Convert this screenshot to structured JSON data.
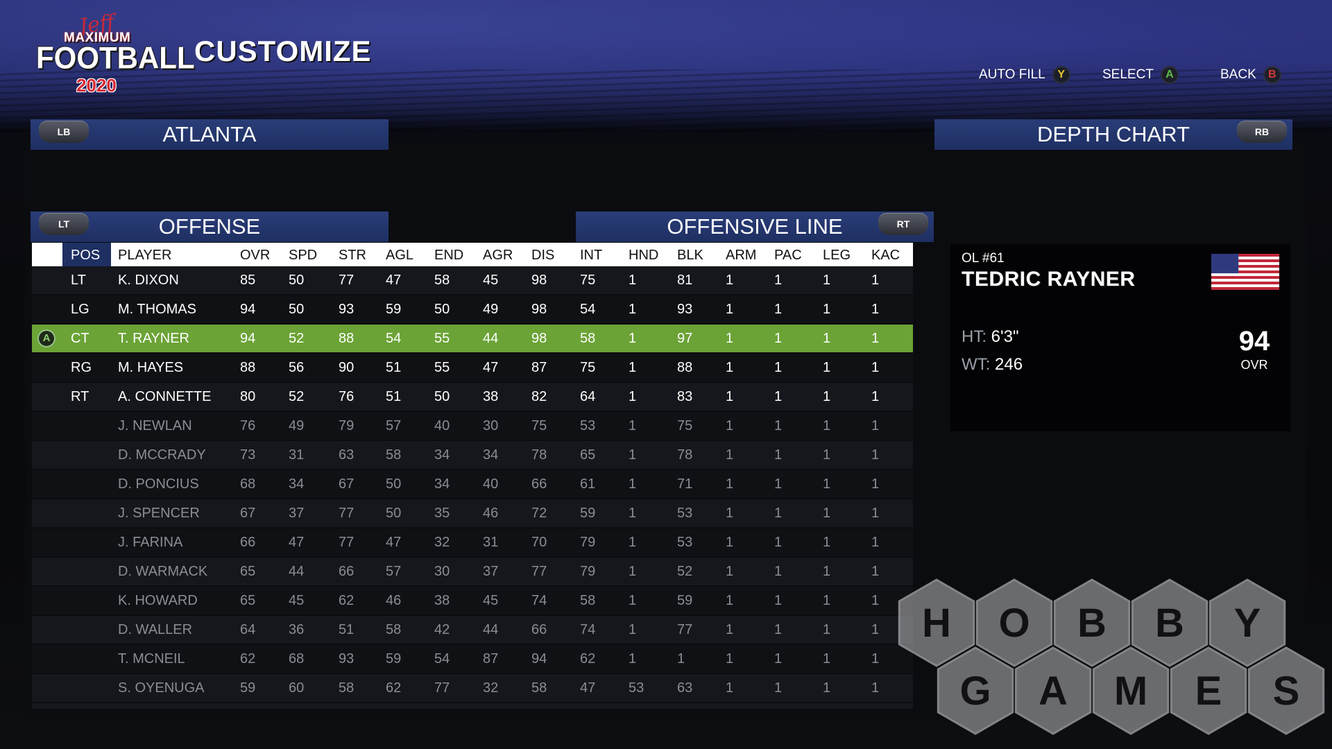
{
  "header": {
    "logo": {
      "script": "Jeff",
      "line1": "MAXIMUM",
      "line2": "FOOTBALL",
      "year": "2020"
    },
    "title": "CUSTOMIZE",
    "actions": [
      {
        "label": "AUTO FILL",
        "button": "Y"
      },
      {
        "label": "SELECT",
        "button": "A"
      },
      {
        "label": "BACK",
        "button": "B"
      }
    ]
  },
  "team_bar": {
    "title": "ATLANTA",
    "bumper": "LB"
  },
  "depth_bar": {
    "title": "DEPTH CHART",
    "bumper": "RB"
  },
  "offense_bar": {
    "title": "OFFENSE",
    "bumper": "LT"
  },
  "line_bar": {
    "title": "OFFENSIVE LINE",
    "bumper": "RT"
  },
  "table": {
    "columns": [
      "POS",
      "PLAYER",
      "OVR",
      "SPD",
      "STR",
      "AGL",
      "END",
      "AGR",
      "DIS",
      "INT",
      "HND",
      "BLK",
      "ARM",
      "PAC",
      "LEG",
      "KAC"
    ],
    "rows": [
      {
        "pos": "LT",
        "player": "K. DIXON",
        "stats": [
          "85",
          "50",
          "77",
          "47",
          "58",
          "45",
          "98",
          "75",
          "1",
          "81",
          "1",
          "1",
          "1",
          "1"
        ]
      },
      {
        "pos": "LG",
        "player": "M. THOMAS",
        "stats": [
          "94",
          "50",
          "93",
          "59",
          "50",
          "49",
          "98",
          "54",
          "1",
          "93",
          "1",
          "1",
          "1",
          "1"
        ]
      },
      {
        "pos": "CT",
        "player": "T. RAYNER",
        "stats": [
          "94",
          "52",
          "88",
          "54",
          "55",
          "44",
          "98",
          "58",
          "1",
          "97",
          "1",
          "1",
          "1",
          "1"
        ],
        "selected": true,
        "badge": "A"
      },
      {
        "pos": "RG",
        "player": "M. HAYES",
        "stats": [
          "88",
          "56",
          "90",
          "51",
          "55",
          "47",
          "87",
          "75",
          "1",
          "88",
          "1",
          "1",
          "1",
          "1"
        ]
      },
      {
        "pos": "RT",
        "player": "A. CONNETTE",
        "stats": [
          "80",
          "52",
          "76",
          "51",
          "50",
          "38",
          "82",
          "64",
          "1",
          "83",
          "1",
          "1",
          "1",
          "1"
        ]
      },
      {
        "pos": "",
        "player": "J. NEWLAN",
        "stats": [
          "76",
          "49",
          "79",
          "57",
          "40",
          "30",
          "75",
          "53",
          "1",
          "75",
          "1",
          "1",
          "1",
          "1"
        ]
      },
      {
        "pos": "",
        "player": "D. MCCRADY",
        "stats": [
          "73",
          "31",
          "63",
          "58",
          "34",
          "34",
          "78",
          "65",
          "1",
          "78",
          "1",
          "1",
          "1",
          "1"
        ]
      },
      {
        "pos": "",
        "player": "D. PONCIUS",
        "stats": [
          "68",
          "34",
          "67",
          "50",
          "34",
          "40",
          "66",
          "61",
          "1",
          "71",
          "1",
          "1",
          "1",
          "1"
        ]
      },
      {
        "pos": "",
        "player": "J. SPENCER",
        "stats": [
          "67",
          "37",
          "77",
          "50",
          "35",
          "46",
          "72",
          "59",
          "1",
          "53",
          "1",
          "1",
          "1",
          "1"
        ]
      },
      {
        "pos": "",
        "player": "J. FARINA",
        "stats": [
          "66",
          "47",
          "77",
          "47",
          "32",
          "31",
          "70",
          "79",
          "1",
          "53",
          "1",
          "1",
          "1",
          "1"
        ]
      },
      {
        "pos": "",
        "player": "D. WARMACK",
        "stats": [
          "65",
          "44",
          "66",
          "57",
          "30",
          "37",
          "77",
          "79",
          "1",
          "52",
          "1",
          "1",
          "1",
          "1"
        ]
      },
      {
        "pos": "",
        "player": "K. HOWARD",
        "stats": [
          "65",
          "45",
          "62",
          "46",
          "38",
          "45",
          "74",
          "58",
          "1",
          "59",
          "1",
          "1",
          "1",
          "1"
        ]
      },
      {
        "pos": "",
        "player": "D. WALLER",
        "stats": [
          "64",
          "36",
          "51",
          "58",
          "42",
          "44",
          "66",
          "74",
          "1",
          "77",
          "1",
          "1",
          "1",
          "1"
        ]
      },
      {
        "pos": "",
        "player": "T. MCNEIL",
        "stats": [
          "62",
          "68",
          "93",
          "59",
          "54",
          "87",
          "94",
          "62",
          "1",
          "1",
          "1",
          "1",
          "1",
          "1"
        ]
      },
      {
        "pos": "",
        "player": "S. OYENUGA",
        "stats": [
          "59",
          "60",
          "58",
          "62",
          "77",
          "32",
          "58",
          "47",
          "53",
          "63",
          "1",
          "1",
          "1",
          "1"
        ]
      }
    ]
  },
  "player_card": {
    "pos_number": "OL #61",
    "name": "TEDRIC RAYNER",
    "flag": "us-flag-icon",
    "height_label": "HT:",
    "height": "6'3\"",
    "weight_label": "WT:",
    "weight": "246",
    "ovr": "94",
    "ovr_label": "OVR"
  },
  "watermark": {
    "line1": [
      "H",
      "O",
      "B",
      "B",
      "Y"
    ],
    "line2": [
      "G",
      "A",
      "M",
      "E",
      "S"
    ]
  },
  "colors": {
    "accent_green": "#6ba336",
    "header_blue": "#1e2f62",
    "bench_text": "#8b8d93"
  }
}
